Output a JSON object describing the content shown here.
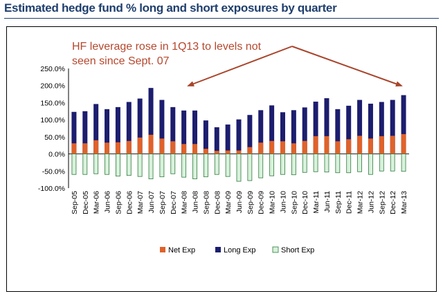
{
  "header": {
    "title": "Estimated hedge fund % long and short exposures by quarter"
  },
  "annotation": {
    "line1": "HF leverage rose in 1Q13 to levels not",
    "line2": "seen since Sept. 07"
  },
  "colors": {
    "net": "#e0622a",
    "long": "#1c1d6e",
    "short": "#d9f1dc",
    "short_border": "#2d7a3a",
    "annotation": "#a8452c",
    "title": "#1f3f6e"
  },
  "chart_data": {
    "type": "bar",
    "title": "Estimated hedge fund % long and short exposures by quarter",
    "xlabel": "",
    "ylabel": "",
    "ylim": [
      -100,
      250
    ],
    "yticks": [
      "250.0%",
      "200.0%",
      "150.0%",
      "100.0%",
      "50.0%",
      "0.0%",
      "-50.0%",
      "-100.0%"
    ],
    "categories": [
      "Sep-05",
      "Dec-05",
      "Mar-06",
      "Jun-06",
      "Sep-06",
      "Dec-06",
      "Mar-07",
      "Jun-07",
      "Sep-07",
      "Dec-07",
      "Mar-08",
      "Jun-08",
      "Sep-08",
      "Dec-08",
      "Mar-09",
      "Jun-09",
      "Sep-09",
      "Dec-09",
      "Mar-10",
      "Jun-10",
      "Sep-10",
      "Dec-10",
      "Mar-11",
      "Jun-11",
      "Sep-11",
      "Dec-11",
      "Mar-12",
      "Jun-12",
      "Sep-12",
      "Dec-12",
      "Mar-13"
    ],
    "series": [
      {
        "name": "Net Exp",
        "values": [
          31,
          31,
          40,
          33,
          34,
          38,
          48,
          56,
          45,
          37,
          29,
          29,
          15,
          9,
          10,
          10,
          20,
          33,
          38,
          37,
          31,
          38,
          52,
          52,
          37,
          43,
          53,
          45,
          52,
          53,
          58
        ]
      },
      {
        "name": "Long Exp",
        "values": [
          123,
          125,
          146,
          131,
          137,
          152,
          162,
          193,
          158,
          137,
          127,
          127,
          98,
          78,
          86,
          101,
          114,
          128,
          142,
          122,
          128,
          136,
          153,
          163,
          131,
          141,
          158,
          147,
          152,
          158,
          172
        ]
      },
      {
        "name": "Short Exp",
        "values": [
          -60,
          -60,
          -58,
          -60,
          -65,
          -63,
          -66,
          -73,
          -67,
          -58,
          -68,
          -73,
          -67,
          -60,
          -66,
          -80,
          -78,
          -70,
          -64,
          -60,
          -61,
          -54,
          -52,
          -53,
          -55,
          -55,
          -52,
          -60,
          -50,
          -50,
          -51
        ]
      }
    ],
    "legend": [
      "Net Exp",
      "Long Exp",
      "Short Exp"
    ],
    "legend_position": "bottom"
  }
}
